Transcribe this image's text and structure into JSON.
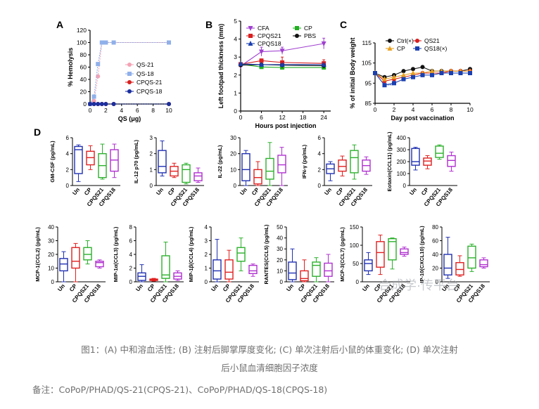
{
  "figure": {
    "panels": {
      "A": {
        "letter": "A",
        "xlabel": "QS (μg)",
        "ylabel": "% Hemolysis"
      },
      "B": {
        "letter": "B",
        "xlabel": "Hours post injection",
        "ylabel": "Left footpad thickness (mm)"
      },
      "C": {
        "letter": "C",
        "xlabel": "Day post vaccination",
        "ylabel": "% of initial Body weight"
      },
      "D": {
        "letter": "D"
      }
    },
    "watermark": "合成学·传平台"
  },
  "chart_data": [
    {
      "id": "A",
      "type": "line",
      "xlabel": "QS (μg)",
      "ylabel": "% Hemolysis",
      "xlim": [
        0,
        10
      ],
      "ylim": [
        0,
        120
      ],
      "xticks": [
        0,
        2,
        4,
        6,
        8,
        10
      ],
      "yticks": [
        0,
        20,
        40,
        60,
        80,
        100,
        120
      ],
      "legend_position": "center-right",
      "series": [
        {
          "name": "QS-21",
          "color": "#f4a3b4",
          "marker": "circle",
          "x": [
            0,
            0.5,
            1,
            1.5,
            2,
            3,
            10
          ],
          "y": [
            0,
            5,
            45,
            100,
            100,
            100,
            100
          ]
        },
        {
          "name": "QS-18",
          "color": "#8fb0ea",
          "marker": "square",
          "x": [
            0,
            0.5,
            1,
            1.5,
            2,
            3,
            10
          ],
          "y": [
            0,
            12,
            65,
            100,
            100,
            100,
            100
          ]
        },
        {
          "name": "CPQS-21",
          "color": "#d82020",
          "marker": "circle",
          "x": [
            0,
            0.5,
            1,
            1.5,
            2,
            3,
            10
          ],
          "y": [
            0,
            0,
            0,
            0,
            0,
            0,
            0
          ]
        },
        {
          "name": "CPQS-18",
          "color": "#1a2fa0",
          "marker": "circle",
          "x": [
            0,
            0.5,
            1,
            1.5,
            2,
            3,
            10
          ],
          "y": [
            0,
            0,
            0,
            0,
            0,
            0,
            0
          ]
        }
      ]
    },
    {
      "id": "B",
      "type": "line",
      "xlabel": "Hours post injection",
      "ylabel": "Left footpad thickness (mm)",
      "xlim": [
        0,
        26
      ],
      "ylim": [
        0,
        5
      ],
      "xticks": [
        0,
        6,
        12,
        18,
        24
      ],
      "yticks": [
        0,
        1,
        2,
        3,
        4,
        5
      ],
      "legend_position": "top",
      "series": [
        {
          "name": "CFA",
          "color": "#a040d0",
          "marker": "triangle-down",
          "x": [
            0,
            6,
            12,
            24
          ],
          "y": [
            2.5,
            3.3,
            3.35,
            3.75
          ],
          "err": [
            0.1,
            0.25,
            0.2,
            0.3
          ]
        },
        {
          "name": "CP",
          "color": "#22b022",
          "marker": "square",
          "x": [
            0,
            6,
            12,
            24
          ],
          "y": [
            2.6,
            2.45,
            2.42,
            2.42
          ],
          "err": [
            0.08,
            0.08,
            0.08,
            0.08
          ]
        },
        {
          "name": "CPQS21",
          "color": "#d82020",
          "marker": "square",
          "x": [
            0,
            6,
            12,
            24
          ],
          "y": [
            2.6,
            2.8,
            2.7,
            2.65
          ],
          "err": [
            0.08,
            0.1,
            0.3,
            0.2
          ]
        },
        {
          "name": "PBS",
          "color": "#111111",
          "marker": "circle",
          "x": [
            0,
            6,
            12,
            24
          ],
          "y": [
            2.55,
            2.58,
            2.55,
            2.52
          ],
          "err": [
            0.05,
            0.05,
            0.05,
            0.05
          ]
        },
        {
          "name": "CPQS18",
          "color": "#1a3fb0",
          "marker": "triangle",
          "x": [
            0,
            6,
            12,
            24
          ],
          "y": [
            2.62,
            2.58,
            2.58,
            2.58
          ],
          "err": [
            0.06,
            0.06,
            0.06,
            0.06
          ]
        }
      ]
    },
    {
      "id": "C",
      "type": "line",
      "xlabel": "Day post vaccination",
      "ylabel": "% of initial Body weight",
      "xlim": [
        0,
        10
      ],
      "ylim": [
        85,
        115
      ],
      "xticks": [
        0,
        2,
        4,
        6,
        8,
        10
      ],
      "yticks": [
        85,
        95,
        105,
        115
      ],
      "legend_position": "top",
      "annotations": [
        "***"
      ],
      "series": [
        {
          "name": "Ctrl(×)",
          "color": "#111111",
          "marker": "circle",
          "x": [
            0,
            1,
            2,
            3,
            4,
            5,
            6,
            7,
            8,
            9,
            10
          ],
          "y": [
            100,
            98,
            99,
            101,
            102,
            103,
            101,
            101,
            101,
            101,
            102
          ]
        },
        {
          "name": "QS21",
          "color": "#d82020",
          "marker": "circle",
          "x": [
            0,
            1,
            2,
            3,
            4,
            5,
            6,
            7,
            8,
            9,
            10
          ],
          "y": [
            100,
            96,
            97,
            98,
            99,
            100,
            100,
            100,
            101,
            101,
            101
          ]
        },
        {
          "name": "CP",
          "color": "#e8a020",
          "marker": "triangle",
          "x": [
            0,
            1,
            2,
            3,
            4,
            5,
            6,
            7,
            8,
            9,
            10
          ],
          "y": [
            100,
            97,
            98,
            99,
            100,
            100,
            101,
            101,
            101,
            101,
            101
          ]
        },
        {
          "name": "QS18(×)",
          "color": "#1a3fb0",
          "marker": "square",
          "x": [
            0,
            1,
            2,
            3,
            4,
            5,
            6,
            7,
            8,
            9,
            10
          ],
          "y": [
            100,
            94,
            95,
            97,
            98,
            99,
            99,
            100,
            100,
            100,
            100
          ]
        }
      ]
    },
    {
      "id": "D",
      "type": "box",
      "groups": [
        "Un",
        "CP",
        "CPQS21",
        "CPQS18"
      ],
      "group_colors": [
        "#2030b0",
        "#e02020",
        "#2cb02c",
        "#b030d0"
      ],
      "subplots": [
        {
          "ylabel": "GM-CSF (pg/mL)",
          "ylim": [
            0,
            6
          ],
          "yticks": [
            0,
            2,
            4,
            6
          ],
          "boxes": [
            [
              0.5,
              1.5,
              4.5,
              4.9,
              5.1
            ],
            [
              2.0,
              2.6,
              3.5,
              4.3,
              5.0
            ],
            [
              0.8,
              1.0,
              2.5,
              4.0,
              5.2
            ],
            [
              1.0,
              1.8,
              3.2,
              4.5,
              5.2
            ]
          ]
        },
        {
          "ylabel": "IL-12 p70 (pg/mL)",
          "ylim": [
            0,
            3
          ],
          "yticks": [
            0,
            1,
            2,
            3
          ],
          "boxes": [
            [
              0.6,
              0.8,
              1.2,
              2.2,
              2.8
            ],
            [
              0.5,
              0.6,
              0.9,
              1.2,
              1.4
            ],
            [
              0.1,
              0.2,
              1.0,
              1.3,
              1.4
            ],
            [
              0.2,
              0.3,
              0.6,
              0.8,
              1.1
            ]
          ]
        },
        {
          "ylabel": "IL-22 (pg/mL)",
          "ylim": [
            0,
            30
          ],
          "yticks": [
            0,
            10,
            20,
            30
          ],
          "boxes": [
            [
              0,
              3,
              10,
              20,
              22
            ],
            [
              0,
              1,
              5,
              10,
              15
            ],
            [
              0,
              4,
              9,
              17,
              27
            ],
            [
              0,
              8,
              13,
              19,
              24
            ]
          ]
        },
        {
          "ylabel": "IFN-γ (pg/mL)",
          "ylim": [
            0,
            6
          ],
          "yticks": [
            0,
            2,
            4,
            6
          ],
          "boxes": [
            [
              0.6,
              1.5,
              2.1,
              2.7,
              3.0
            ],
            [
              1.2,
              1.8,
              2.4,
              3.2,
              3.7
            ],
            [
              0.8,
              1.6,
              3.5,
              4.4,
              5.1
            ],
            [
              1.4,
              1.8,
              2.5,
              3.2,
              3.6
            ]
          ]
        },
        {
          "ylabel": "Eotaxin(CCL11) (pg/mL)",
          "ylim": [
            0,
            400
          ],
          "yticks": [
            0,
            100,
            200,
            300,
            400
          ],
          "boxes": [
            [
              130,
              170,
              200,
              310,
              320
            ],
            [
              140,
              170,
              205,
              230,
              250
            ],
            [
              220,
              235,
              270,
              330,
              340
            ],
            [
              120,
              160,
              210,
              250,
              280
            ]
          ]
        },
        {
          "ylabel": "MCP-1(CCL2) (pg/mL)",
          "ylim": [
            0,
            40
          ],
          "yticks": [
            0,
            10,
            20,
            30,
            40
          ],
          "boxes": [
            [
              0,
              8,
              13,
              17,
              22
            ],
            [
              0,
              10,
              15,
              25,
              28
            ],
            [
              13,
              16,
              20,
              25,
              30
            ],
            [
              10,
              11,
              14,
              15,
              16
            ]
          ]
        },
        {
          "ylabel": "MIP-1α(CCL3) (pg/mL)",
          "ylim": [
            0,
            8
          ],
          "yticks": [
            0,
            2,
            4,
            6,
            8
          ],
          "boxes": [
            [
              0,
              0.2,
              0.8,
              1.3,
              2.5
            ],
            [
              0.1,
              0.2,
              0.3,
              0.4,
              0.5
            ],
            [
              0,
              0.5,
              1.0,
              3.8,
              5.8
            ],
            [
              0.2,
              0.4,
              0.8,
              1.3,
              1.6
            ]
          ]
        },
        {
          "ylabel": "MIP-1β(CCL4) (pg/mL)",
          "ylim": [
            0,
            4
          ],
          "yticks": [
            0,
            1,
            2,
            3,
            4
          ],
          "boxes": [
            [
              0,
              0.2,
              0.8,
              1.6,
              3.1
            ],
            [
              0,
              0.2,
              0.7,
              1.6,
              2.3
            ],
            [
              0.8,
              1.5,
              2.1,
              2.5,
              3.2
            ],
            [
              0.4,
              0.6,
              0.8,
              1.2,
              1.3
            ]
          ]
        },
        {
          "ylabel": "RANTES(CCL5) (pg/mL)",
          "ylim": [
            0,
            50
          ],
          "yticks": [
            0,
            10,
            20,
            30,
            40,
            50
          ],
          "boxes": [
            [
              0,
              2,
              8,
              18,
              30
            ],
            [
              0,
              1,
              3,
              10,
              20
            ],
            [
              0,
              5,
              15,
              18,
              22
            ],
            [
              0,
              5,
              10,
              17,
              25
            ]
          ]
        },
        {
          "ylabel": "MCP-3(CCL7) (pg/mL)",
          "ylim": [
            0,
            150
          ],
          "yticks": [
            0,
            50,
            100,
            150
          ],
          "boxes": [
            [
              20,
              30,
              50,
              60,
              80
            ],
            [
              20,
              40,
              80,
              110,
              128
            ],
            [
              35,
              60,
              110,
              118,
              120
            ],
            [
              70,
              75,
              80,
              90,
              95
            ]
          ]
        },
        {
          "ylabel": "IP-10(CXCL10) (pg/mL)",
          "ylim": [
            0,
            80
          ],
          "yticks": [
            0,
            20,
            40,
            60,
            80
          ],
          "boxes": [
            [
              5,
              10,
              20,
              40,
              65
            ],
            [
              8,
              10,
              18,
              28,
              38
            ],
            [
              15,
              20,
              35,
              52,
              55
            ],
            [
              20,
              22,
              25,
              32,
              35
            ]
          ]
        }
      ]
    }
  ],
  "caption": {
    "line1": "图1：(A) 中和溶血活性; (B) 注射后脚掌厚度变化; (C) 单次注射后小鼠的体重变化; (D) 单次注射",
    "line2": "后小鼠血清细胞因子浓度",
    "note": "备注：CoPoP/PHAD/QS-21(CPQS-21)、CoPoP/PHAD/QS-18(CPQS-18)"
  }
}
